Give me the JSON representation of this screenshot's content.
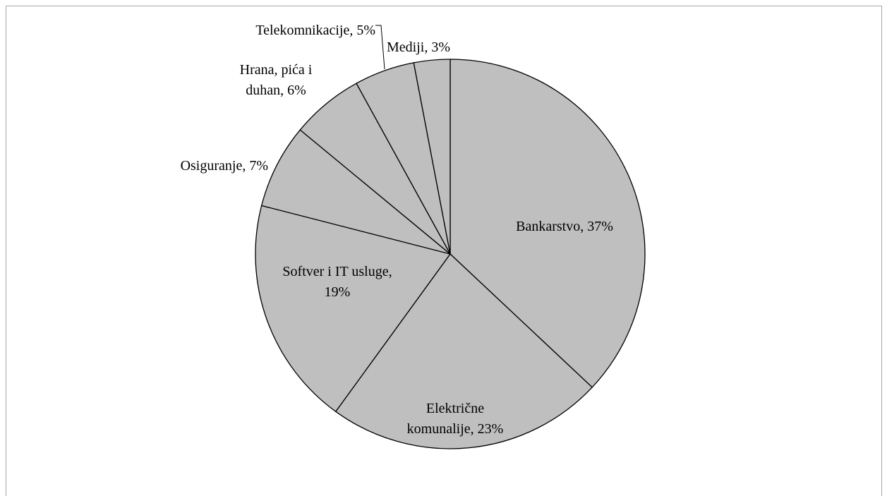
{
  "chart_data": {
    "type": "pie",
    "values": [
      37,
      23,
      19,
      7,
      6,
      5,
      3
    ],
    "value_labels": [
      [
        "Bankarstvo, 37%"
      ],
      [
        "Električne",
        "komunalije, 23%"
      ],
      [
        "Softver i IT usluge,",
        "19%"
      ],
      [
        "Osiguranje, 7%"
      ],
      [
        "Hrana, pića i",
        "duhan, 6%"
      ],
      [
        "Telekomnikacije, 5%"
      ],
      [
        "Mediji, 3%"
      ]
    ],
    "color": "#bfbfbf"
  }
}
